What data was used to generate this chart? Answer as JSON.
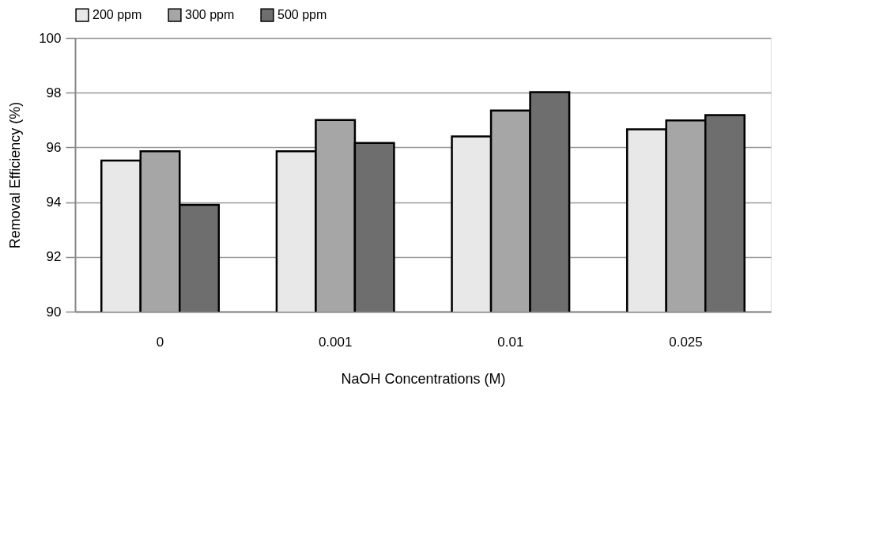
{
  "chart_data": {
    "type": "bar",
    "xlabel": "NaOH Concentrations (M)",
    "ylabel": "Removal Efficiency (%)",
    "categories": [
      "0",
      "0.001",
      "0.01",
      "0.025"
    ],
    "series": [
      {
        "name": "200 ppm",
        "color": "#e8e8e8",
        "values": [
          95.52,
          95.86,
          96.4,
          96.66
        ]
      },
      {
        "name": "300 ppm",
        "color": "#a6a6a6",
        "values": [
          95.86,
          97.0,
          97.35,
          96.99
        ]
      },
      {
        "name": "500 ppm",
        "color": "#6e6e6e",
        "values": [
          93.9,
          96.16,
          98.02,
          97.18
        ]
      }
    ],
    "ylim": [
      90,
      100
    ],
    "yticks": [
      90,
      92,
      94,
      96,
      98,
      100
    ],
    "grid": "y",
    "legend": "top"
  }
}
